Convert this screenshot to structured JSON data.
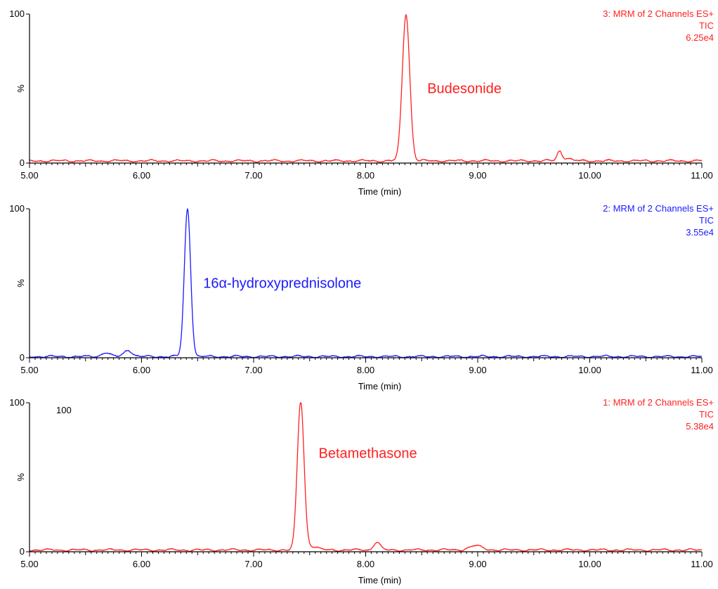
{
  "chart_data": [
    {
      "type": "line",
      "xlabel": "Time (min)",
      "ylabel": "%",
      "xlim": [
        5.0,
        11.0
      ],
      "ylim": [
        0,
        100
      ],
      "x_ticks": [
        "5.00",
        "6.00",
        "7.00",
        "8.00",
        "9.00",
        "10.00",
        "11.00"
      ],
      "y_ticks": [
        "0",
        "100"
      ],
      "color": "#ff2020",
      "info_lines": [
        "3: MRM of 2 Channels ES+",
        "TIC",
        "6.25e4"
      ],
      "annotation": {
        "text": "Budesonide",
        "x": 8.55,
        "y": 47
      },
      "baseline": 1.5,
      "peaks": [
        {
          "center": 8.36,
          "height": 98.5,
          "width": 0.033
        },
        {
          "center": 9.73,
          "height": 6.5,
          "width": 0.022
        },
        {
          "center": 9.8,
          "height": 2.0,
          "width": 0.03
        }
      ]
    },
    {
      "type": "line",
      "xlabel": "Time (min)",
      "ylabel": "%",
      "xlim": [
        5.0,
        11.0
      ],
      "ylim": [
        0,
        100
      ],
      "x_ticks": [
        "5.00",
        "6.00",
        "7.00",
        "8.00",
        "9.00",
        "10.00",
        "11.00"
      ],
      "y_ticks": [
        "0",
        "100"
      ],
      "color": "#1a1aff",
      "info_lines": [
        "2: MRM of 2 Channels ES+",
        "TIC",
        "3.55e4"
      ],
      "annotation": {
        "text": "16α-hydroxyprednisolone",
        "x": 6.55,
        "y": 47
      },
      "baseline": 0.8,
      "peaks": [
        {
          "center": 6.41,
          "height": 99.0,
          "width": 0.028
        },
        {
          "center": 5.68,
          "height": 2.8,
          "width": 0.035
        },
        {
          "center": 5.88,
          "height": 4.5,
          "width": 0.035
        }
      ]
    },
    {
      "type": "line",
      "xlabel": "Time (min)",
      "ylabel": "%",
      "xlim": [
        5.0,
        11.0
      ],
      "ylim": [
        0,
        100
      ],
      "x_ticks": [
        "5.00",
        "6.00",
        "7.00",
        "8.00",
        "9.00",
        "10.00",
        "11.00"
      ],
      "y_ticks": [
        "0",
        "100"
      ],
      "color": "#ff2020",
      "corner_label": "100",
      "info_lines": [
        "1: MRM of 2 Channels ES+",
        "TIC",
        "5.38e4"
      ],
      "annotation": {
        "text": "Betamethasone",
        "x": 7.58,
        "y": 63
      },
      "baseline": 1.2,
      "peaks": [
        {
          "center": 7.42,
          "height": 99.5,
          "width": 0.03
        },
        {
          "center": 7.52,
          "height": 2.5,
          "width": 0.05
        },
        {
          "center": 8.1,
          "height": 5.5,
          "width": 0.028
        },
        {
          "center": 8.98,
          "height": 2.8,
          "width": 0.06
        }
      ]
    }
  ]
}
